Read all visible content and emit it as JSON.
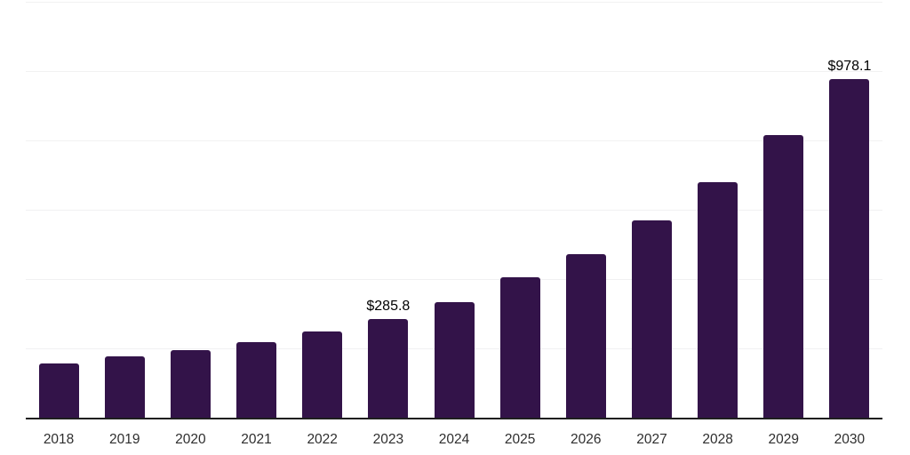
{
  "chart_data": {
    "type": "bar",
    "title": "",
    "xlabel": "",
    "ylabel": "",
    "categories": [
      "2018",
      "2019",
      "2020",
      "2021",
      "2022",
      "2023",
      "2024",
      "2025",
      "2026",
      "2027",
      "2028",
      "2029",
      "2030"
    ],
    "values": [
      156,
      177,
      195,
      218,
      248,
      285.8,
      333,
      406,
      472,
      569,
      679,
      815,
      978.1
    ],
    "value_labels": [
      "",
      "",
      "",
      "",
      "",
      "$285.8",
      "",
      "",
      "",
      "",
      "",
      "",
      "$978.1"
    ],
    "ylim": [
      0,
      1200
    ],
    "grid_step": 200,
    "grid": "horizontal",
    "legend_position": "none",
    "colors": {
      "bar": "#331349",
      "axis_line": "#1f1f1f",
      "gridline": "#f1f1f2",
      "tick_label": "#2e2e2e",
      "data_label": "#000000",
      "background": "#ffffff"
    }
  }
}
